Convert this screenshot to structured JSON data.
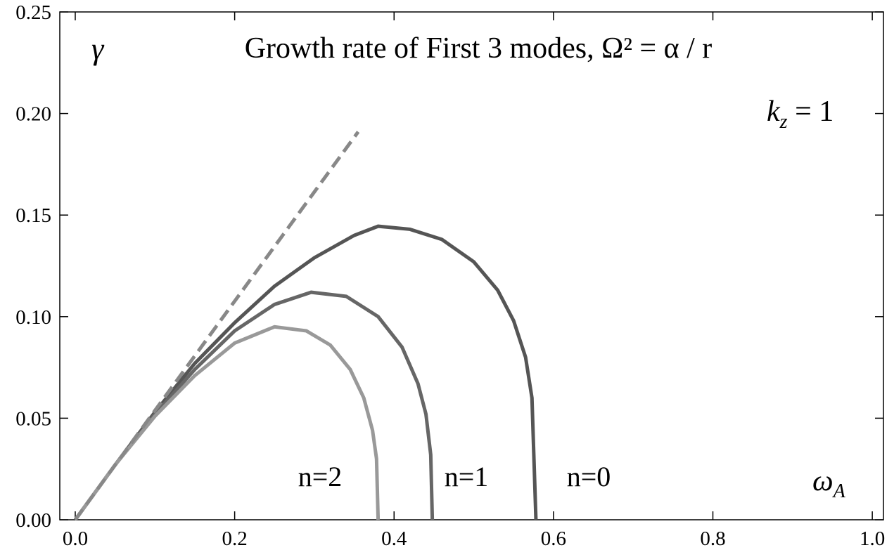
{
  "chart_data": {
    "type": "line",
    "title": "Growth rate of First 3 modes, Ω² = α / r",
    "y_label": "γ",
    "x_label": {
      "symbol": "ω",
      "subscript": "A"
    },
    "annotation": {
      "symbol": "k",
      "subscript": "z",
      "text": " = 1"
    },
    "xlim": [
      -0.0194,
      1.014
    ],
    "ylim": [
      0,
      0.25
    ],
    "xticks": [
      {
        "value": 0,
        "label": "0.0"
      },
      0.2,
      0.4,
      0.6,
      0.8,
      {
        "value": 1,
        "label": "1.0"
      }
    ],
    "yticks": [
      {
        "value": 0,
        "label": "0.00"
      },
      {
        "value": 0.05,
        "label": "0.05"
      },
      {
        "value": 0.1,
        "label": "0.10"
      },
      {
        "value": 0.15,
        "label": "0.15"
      },
      {
        "value": 0.2,
        "label": "0.20"
      },
      {
        "value": 0.25,
        "label": "0.25"
      }
    ],
    "series": [
      {
        "name": "n=0",
        "color": "#555555",
        "x": [
          0,
          0.05,
          0.1,
          0.15,
          0.2,
          0.25,
          0.3,
          0.35,
          0.38,
          0.42,
          0.46,
          0.5,
          0.53,
          0.55,
          0.565,
          0.573,
          0.578
        ],
        "values": [
          0,
          0.027,
          0.053,
          0.077,
          0.097,
          0.115,
          0.129,
          0.14,
          0.1445,
          0.143,
          0.138,
          0.127,
          0.113,
          0.098,
          0.08,
          0.06,
          0
        ]
      },
      {
        "name": "n=1",
        "color": "#666666",
        "x": [
          0,
          0.05,
          0.1,
          0.15,
          0.2,
          0.25,
          0.296,
          0.34,
          0.38,
          0.41,
          0.43,
          0.44,
          0.446,
          0.448
        ],
        "values": [
          0,
          0.027,
          0.052,
          0.074,
          0.093,
          0.106,
          0.112,
          0.11,
          0.1,
          0.085,
          0.067,
          0.052,
          0.032,
          0
        ]
      },
      {
        "name": "n=2",
        "color": "#999999",
        "x": [
          0,
          0.05,
          0.1,
          0.15,
          0.2,
          0.25,
          0.29,
          0.32,
          0.345,
          0.362,
          0.373,
          0.378,
          0.38
        ],
        "values": [
          0,
          0.027,
          0.051,
          0.071,
          0.087,
          0.095,
          0.093,
          0.086,
          0.074,
          0.06,
          0.044,
          0.03,
          0
        ]
      },
      {
        "color": "#888888",
        "dashed": true,
        "x": [
          0,
          0.355
        ],
        "values": [
          0,
          0.191
        ]
      }
    ]
  }
}
